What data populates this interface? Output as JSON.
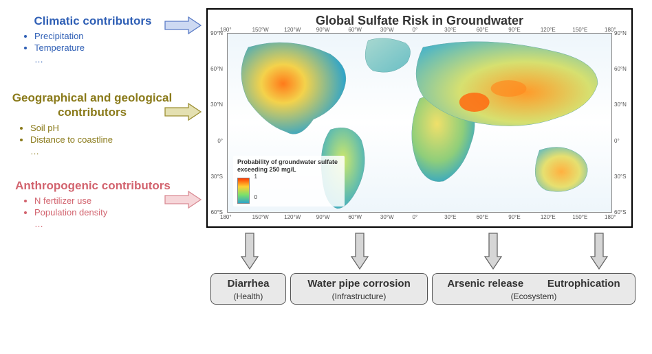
{
  "map": {
    "title": "Global Sulfate Risk in Groundwater",
    "legend_title": "Probability of groundwater sulfate exceeding 250 mg/L",
    "legend_min": "0",
    "legend_max": "1",
    "legend_gradient": [
      "#ff3b00",
      "#ffcf33",
      "#7be06a",
      "#2fa4c9"
    ],
    "lon_ticks": [
      "180°",
      "150°W",
      "120°W",
      "90°W",
      "60°W",
      "30°W",
      "0°",
      "30°E",
      "60°E",
      "90°E",
      "120°E",
      "150°E",
      "180°"
    ],
    "lat_ticks_left": [
      "90°N",
      "60°N",
      "30°N",
      "0°",
      "30°S",
      "60°S"
    ],
    "lat_ticks_right": [
      "90°N",
      "60°N",
      "30°N",
      "0°",
      "30°S",
      "60°S"
    ],
    "border_color": "#000000",
    "panel_bg": "#ffffff",
    "land_low": "#2fa4c9",
    "land_mid": "#7be06a",
    "land_high": "#ff7a1a"
  },
  "contributors": {
    "climatic": {
      "title": "Climatic contributors",
      "color": "#2f5fb5",
      "items": [
        "Precipitation",
        "Temperature"
      ],
      "arrow_fill": "#cdd9f2",
      "arrow_stroke": "#5b7cc6"
    },
    "geo": {
      "title": "Geographical and geological contributors",
      "color": "#8a7a1a",
      "items": [
        "Soil pH",
        "Distance to coastline"
      ],
      "arrow_fill": "#e4e0b1",
      "arrow_stroke": "#9c8f33"
    },
    "anthro": {
      "title": "Anthropogenic contributors",
      "color": "#d2636e",
      "items": [
        "N fertilizer use",
        "Population density"
      ],
      "arrow_fill": "#f6d6d9",
      "arrow_stroke": "#d98b94"
    },
    "ellipsis": "…"
  },
  "outcomes": {
    "diarrhea": {
      "title": "Diarrhea",
      "sub": "(Health)"
    },
    "pipe": {
      "title": "Water pipe corrosion",
      "sub": "(Infrastructure)"
    },
    "eco": {
      "title1": "Arsenic release",
      "title2": "Eutrophication",
      "sub": "(Ecosystem)"
    }
  },
  "down_arrow": {
    "fill": "#d6d6d6",
    "stroke": "#666666"
  }
}
